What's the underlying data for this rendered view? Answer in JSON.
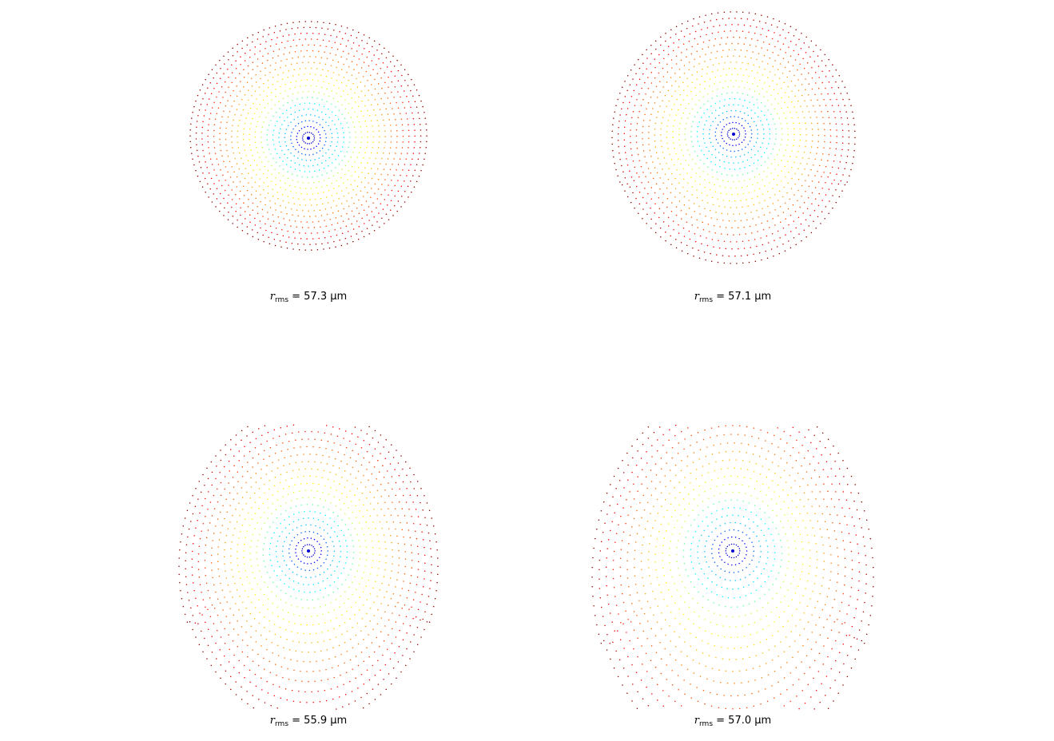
{
  "chart_data": [
    {
      "type": "scatter",
      "plot": "spot-diagram",
      "caption": {
        "symbol": "r",
        "subscript": "rms",
        "text": " = 57.3 μm"
      },
      "r_rms_um": 57.3,
      "rings": 20,
      "shape": "round",
      "colormap": [
        "#00008f",
        "#0000ff",
        "#00bfff",
        "#00ffff",
        "#bfff3f",
        "#ffff00",
        "#ffbf00",
        "#ff7f00",
        "#ff3f00",
        "#ff0000",
        "#8f0000"
      ],
      "grid": false,
      "axes": "off"
    },
    {
      "type": "scatter",
      "plot": "spot-diagram",
      "caption": {
        "symbol": "r",
        "subscript": "rms",
        "text": " = 57.1 μm"
      },
      "r_rms_um": 57.1,
      "rings": 20,
      "shape": "slight-coma",
      "colormap": [
        "#00008f",
        "#0000ff",
        "#00bfff",
        "#00ffff",
        "#bfff3f",
        "#ffff00",
        "#ffbf00",
        "#ff7f00",
        "#ff3f00",
        "#ff0000",
        "#8f0000"
      ],
      "grid": false,
      "axes": "off"
    },
    {
      "type": "scatter",
      "plot": "spot-diagram",
      "caption": {
        "symbol": "r",
        "subscript": "rms",
        "text": " = 55.9 μm"
      },
      "r_rms_um": 55.9,
      "rings": 20,
      "shape": "coma",
      "colormap": [
        "#00008f",
        "#0000ff",
        "#00bfff",
        "#00ffff",
        "#bfff3f",
        "#ffff00",
        "#ffbf00",
        "#ff7f00",
        "#ff3f00",
        "#ff0000",
        "#8f0000"
      ],
      "grid": false,
      "axes": "off"
    },
    {
      "type": "scatter",
      "plot": "spot-diagram",
      "caption": {
        "symbol": "r",
        "subscript": "rms",
        "text": " = 57.0 μm"
      },
      "r_rms_um": 57.0,
      "rings": 20,
      "shape": "strong-coma",
      "colormap": [
        "#00008f",
        "#0000ff",
        "#00bfff",
        "#00ffff",
        "#bfff3f",
        "#ffff00",
        "#ffbf00",
        "#ff7f00",
        "#ff3f00",
        "#ff0000",
        "#8f0000"
      ],
      "grid": false,
      "axes": "off"
    }
  ]
}
